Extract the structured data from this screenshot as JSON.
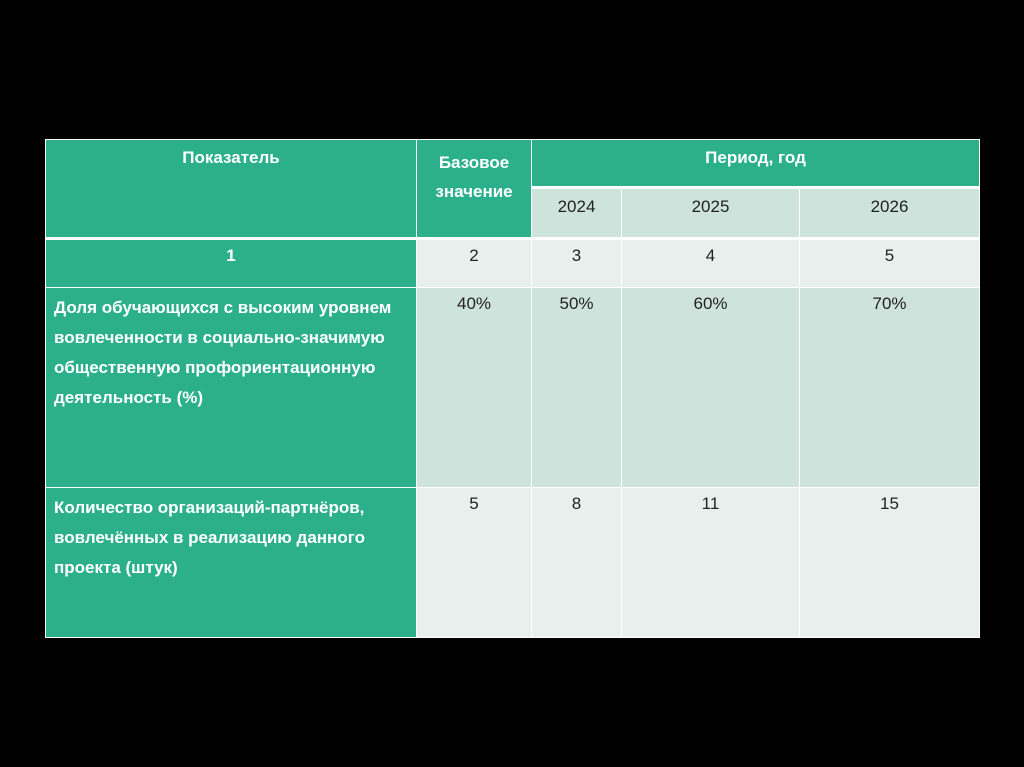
{
  "table": {
    "header": {
      "indicator": "Показатель",
      "base_value": "Базовое значение",
      "period": "Период, год",
      "years": [
        "2024",
        "2025",
        "2026"
      ]
    },
    "numbering": [
      "1",
      "2",
      "3",
      "4",
      "5"
    ],
    "rows": [
      {
        "indicator": "Доля обучающихся с высоким уровнем вовлеченности в социально-значимую общественную профориентационную деятельность (%)",
        "base": "40%",
        "values": [
          "50%",
          "60%",
          "70%"
        ]
      },
      {
        "indicator": "Количество организаций-партнёров, вовлечённых в реализацию данного проекта (штук)",
        "base": "5",
        "values": [
          "8",
          "11",
          "15"
        ]
      }
    ]
  },
  "colors": {
    "header_green": "#2bb08b",
    "cell_light": "#e7f0ed",
    "cell_dark": "#cde3dc",
    "background": "#000000"
  }
}
